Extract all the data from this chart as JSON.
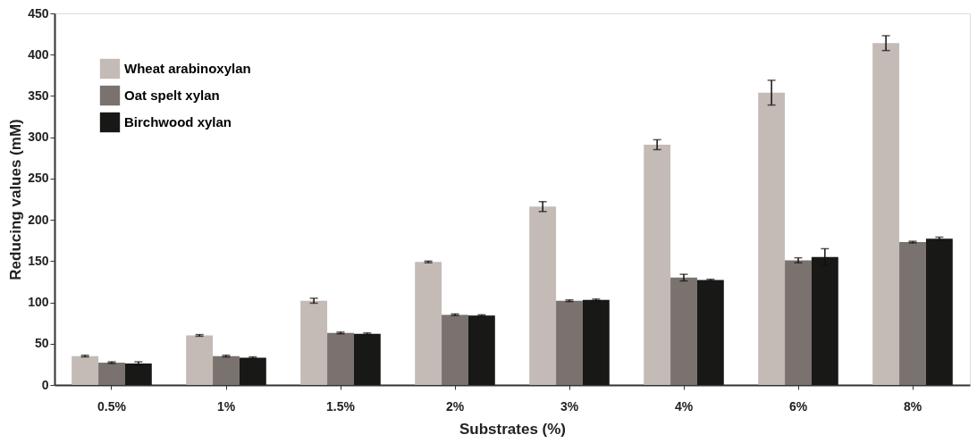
{
  "chart_data": {
    "type": "bar",
    "xlabel": "Substrates (%)",
    "ylabel": "Reducing values (mM)",
    "categories": [
      "0.5%",
      "1%",
      "1.5%",
      "2%",
      "3%",
      "4%",
      "6%",
      "8%"
    ],
    "series": [
      {
        "name": "Wheat arabinoxylan",
        "color": "#c4bbb6",
        "values": [
          35,
          60,
          102,
          149,
          216,
          291,
          354,
          414
        ],
        "errors": [
          1,
          1,
          3,
          1,
          6,
          6,
          15,
          9
        ]
      },
      {
        "name": "Oat spelt xylan",
        "color": "#7a726e",
        "values": [
          27,
          35,
          63,
          85,
          102,
          130,
          151,
          173
        ],
        "errors": [
          1,
          1,
          1,
          1,
          1,
          4,
          3,
          1
        ]
      },
      {
        "name": "Birchwood xylan",
        "color": "#181816",
        "values": [
          26,
          33,
          62,
          84,
          103,
          127,
          155,
          177
        ],
        "errors": [
          2,
          1,
          1,
          1,
          1,
          1,
          10,
          2
        ]
      }
    ],
    "ylim": [
      0,
      450
    ],
    "yticks": [
      0,
      50,
      100,
      150,
      200,
      250,
      300,
      350,
      400,
      450
    ],
    "grid": false,
    "legend": "top left"
  }
}
